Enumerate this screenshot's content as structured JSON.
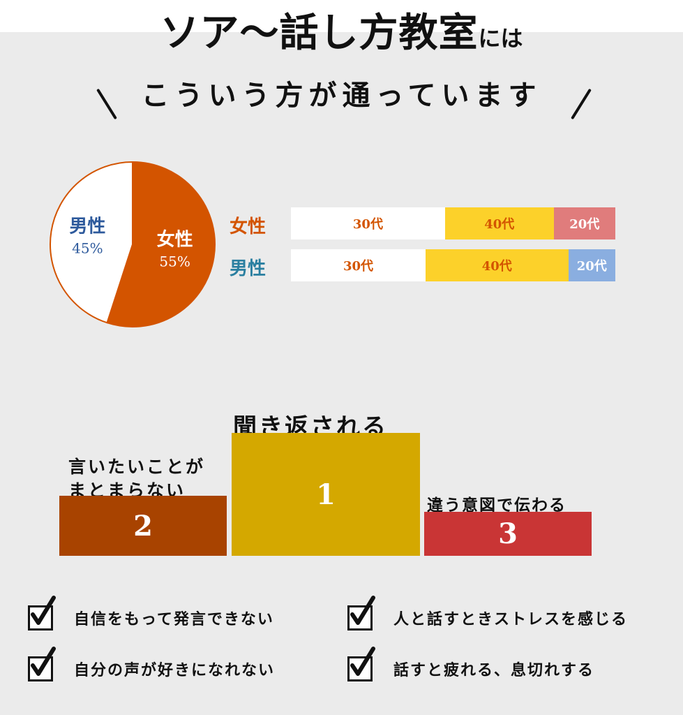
{
  "header": {
    "title_main": "ソア〜話し方教室",
    "title_suffix": "には",
    "subtitle": "こういう方が通っています"
  },
  "colors": {
    "female": "#d35400",
    "male_pie": "#ffffff",
    "male_text": "#2e5a9c",
    "female_label": "#d35400",
    "male_label": "#2a7fa0",
    "age_30": "#ffffff",
    "age_40": "#fcd12a",
    "female_20": "#e07c7c",
    "male_20": "#8aaee0",
    "rank1": "#d4a800",
    "rank2": "#a84300",
    "rank3": "#c93535"
  },
  "chart_data": [
    {
      "type": "pie",
      "slices": [
        {
          "label": "女性",
          "value": 55,
          "value_text": "55%"
        },
        {
          "label": "男性",
          "value": 45,
          "value_text": "45%"
        }
      ]
    },
    {
      "type": "bar",
      "stacked": true,
      "orientation": "horizontal",
      "categories": [
        "女性",
        "男性"
      ],
      "series": [
        {
          "name": "30代",
          "values": [
            47.5,
            41.5
          ]
        },
        {
          "name": "40代",
          "values": [
            33.5,
            44.0
          ]
        },
        {
          "name": "20代",
          "values": [
            19.0,
            14.5
          ]
        }
      ]
    }
  ],
  "ranking": {
    "items": [
      {
        "rank": "1",
        "label": "聞き返される"
      },
      {
        "rank": "2",
        "label_line1": "言いたいことが",
        "label_line2": "まとまらない"
      },
      {
        "rank": "3",
        "label": "違う意図で伝わる"
      }
    ]
  },
  "checklist": [
    "自信をもって発言できない",
    "人と話すときストレスを感じる",
    "自分の声が好きになれない",
    "話すと疲れる、息切れする"
  ]
}
